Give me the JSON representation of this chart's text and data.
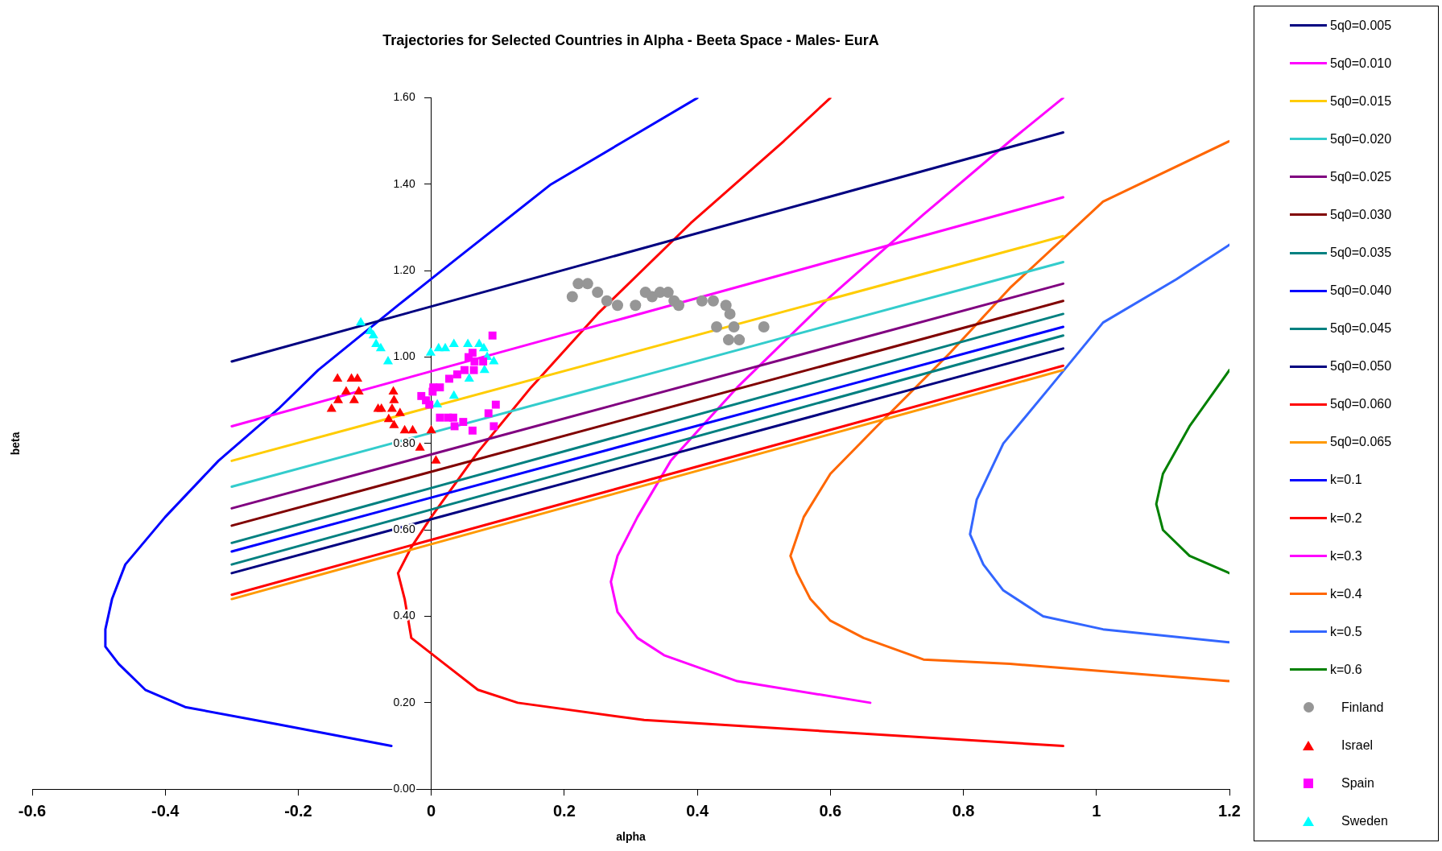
{
  "chart_data": {
    "type": "line",
    "title": "Trajectories for Selected Countries in Alpha - Beeta Space - Males- EurA",
    "xlabel": "alpha",
    "ylabel": "beta",
    "xlim": [
      -0.6,
      1.2
    ],
    "ylim": [
      0,
      1.6
    ],
    "xticks": [
      -0.6,
      -0.4,
      -0.2,
      0,
      0.2,
      0.4,
      0.6,
      0.8,
      1,
      1.2
    ],
    "yticks": [
      {
        "value": 0,
        "label": "0.00"
      },
      {
        "value": 0.2,
        "label": "0.20"
      },
      {
        "value": 0.4,
        "label": "0.40"
      },
      {
        "value": 0.6,
        "label": "0.60"
      },
      {
        "value": 0.8,
        "label": "0.80"
      },
      {
        "value": 1,
        "label": "1.00"
      },
      {
        "value": 1.2,
        "label": "1.20"
      },
      {
        "value": 1.4,
        "label": "1.40"
      },
      {
        "value": 1.6,
        "label": "1.60"
      }
    ],
    "grid": false,
    "legend": "right",
    "marker": "none",
    "line_style": "solid",
    "series": [
      {
        "name": "5q0=0.005",
        "type": "line",
        "color": "#000080",
        "x": [
          -0.3,
          0.95
        ],
        "values": [
          0.99,
          1.52
        ]
      },
      {
        "name": "5q0=0.010",
        "type": "line",
        "color": "#ff00ff",
        "x": [
          -0.3,
          0.95
        ],
        "values": [
          0.84,
          1.37
        ]
      },
      {
        "name": "5q0=0.015",
        "type": "line",
        "color": "#ffcc00",
        "x": [
          -0.3,
          0.95
        ],
        "values": [
          0.76,
          1.28
        ]
      },
      {
        "name": "5q0=0.020",
        "type": "line",
        "color": "#33cccc",
        "x": [
          -0.3,
          0.95
        ],
        "values": [
          0.7,
          1.22
        ]
      },
      {
        "name": "5q0=0.025",
        "type": "line",
        "color": "#800080",
        "x": [
          -0.3,
          0.95
        ],
        "values": [
          0.65,
          1.17
        ]
      },
      {
        "name": "5q0=0.030",
        "type": "line",
        "color": "#800000",
        "x": [
          -0.3,
          0.95
        ],
        "values": [
          0.61,
          1.13
        ]
      },
      {
        "name": "5q0=0.035",
        "type": "line",
        "color": "#008080",
        "x": [
          -0.3,
          0.95
        ],
        "values": [
          0.57,
          1.1
        ]
      },
      {
        "name": "5q0=0.040",
        "type": "line",
        "color": "#0000ff",
        "x": [
          -0.3,
          0.95
        ],
        "values": [
          0.55,
          1.07
        ]
      },
      {
        "name": "5q0=0.045",
        "type": "line",
        "color": "#008080",
        "x": [
          -0.3,
          0.95
        ],
        "values": [
          0.52,
          1.05
        ]
      },
      {
        "name": "5q0=0.050",
        "type": "line",
        "color": "#000080",
        "x": [
          -0.3,
          0.95
        ],
        "values": [
          0.5,
          1.02
        ]
      },
      {
        "name": "5q0=0.060",
        "type": "line",
        "color": "#ff0000",
        "x": [
          -0.3,
          0.95
        ],
        "values": [
          0.45,
          0.98
        ]
      },
      {
        "name": "5q0=0.065",
        "type": "line",
        "color": "#ff9900",
        "x": [
          -0.3,
          0.95
        ],
        "values": [
          0.44,
          0.97
        ]
      },
      {
        "name": "k=0.1",
        "type": "line",
        "color": "#0000ff",
        "x": [
          -0.06,
          -0.23,
          -0.37,
          -0.43,
          -0.47,
          -0.49,
          -0.49,
          -0.48,
          -0.46,
          -0.4,
          -0.32,
          -0.23,
          -0.17,
          -0.05,
          0.04,
          0.18,
          0.29,
          0.4
        ],
        "values": [
          0.1,
          0.15,
          0.19,
          0.23,
          0.29,
          0.33,
          0.37,
          0.44,
          0.52,
          0.63,
          0.76,
          0.88,
          0.97,
          1.12,
          1.23,
          1.4,
          1.5,
          1.6
        ]
      },
      {
        "name": "k=0.2",
        "type": "line",
        "color": "#ff0000",
        "x": [
          0.95,
          0.32,
          0.13,
          0.07,
          0.02,
          -0.03,
          -0.04,
          -0.05,
          -0.03,
          0,
          0.07,
          0.15,
          0.25,
          0.39,
          0.53,
          0.6
        ],
        "values": [
          0.1,
          0.16,
          0.2,
          0.23,
          0.29,
          0.35,
          0.44,
          0.5,
          0.56,
          0.63,
          0.78,
          0.93,
          1.1,
          1.31,
          1.5,
          1.6
        ]
      },
      {
        "name": "k=0.3",
        "type": "line",
        "color": "#ff00ff",
        "x": [
          0.66,
          0.46,
          0.35,
          0.31,
          0.28,
          0.27,
          0.28,
          0.31,
          0.36,
          0.46,
          0.6,
          0.74,
          0.87,
          0.95
        ],
        "values": [
          0.2,
          0.25,
          0.31,
          0.35,
          0.41,
          0.48,
          0.54,
          0.63,
          0.76,
          0.93,
          1.14,
          1.33,
          1.5,
          1.6
        ]
      },
      {
        "name": "k=0.4",
        "type": "line",
        "color": "#ff6600",
        "x": [
          1.2,
          0.87,
          0.74,
          0.65,
          0.6,
          0.57,
          0.55,
          0.54,
          0.56,
          0.6,
          0.67,
          0.78,
          0.87,
          1.01,
          1.2
        ],
        "values": [
          0.25,
          0.29,
          0.3,
          0.35,
          0.39,
          0.44,
          0.5,
          0.54,
          0.63,
          0.73,
          0.84,
          1.01,
          1.16,
          1.36,
          1.5
        ]
      },
      {
        "name": "k=0.5",
        "type": "line",
        "color": "#3366ff",
        "x": [
          1.2,
          1.01,
          0.92,
          0.86,
          0.83,
          0.81,
          0.82,
          0.86,
          0.93,
          1.01,
          1.12,
          1.2
        ],
        "values": [
          0.34,
          0.37,
          0.4,
          0.46,
          0.52,
          0.59,
          0.67,
          0.8,
          0.93,
          1.08,
          1.18,
          1.26
        ]
      },
      {
        "name": "k=0.6",
        "type": "line",
        "color": "#008000",
        "x": [
          1.2,
          1.14,
          1.1,
          1.09,
          1.1,
          1.14,
          1.2
        ],
        "values": [
          0.5,
          0.54,
          0.6,
          0.66,
          0.73,
          0.84,
          0.97
        ]
      },
      {
        "name": "Finland",
        "type": "scatter",
        "marker": "circle",
        "color": "#969696",
        "x": [
          0.212,
          0.221,
          0.235,
          0.25,
          0.264,
          0.28,
          0.307,
          0.322,
          0.332,
          0.344,
          0.356,
          0.365,
          0.372,
          0.407,
          0.424,
          0.443,
          0.449,
          0.429,
          0.455,
          0.447,
          0.463,
          0.5
        ],
        "values": [
          1.14,
          1.17,
          1.17,
          1.15,
          1.13,
          1.12,
          1.12,
          1.15,
          1.14,
          1.15,
          1.15,
          1.13,
          1.12,
          1.13,
          1.13,
          1.12,
          1.1,
          1.07,
          1.07,
          1.04,
          1.04,
          1.07
        ]
      },
      {
        "name": "Israel",
        "type": "scatter",
        "marker": "triangle",
        "color": "#ff0000",
        "x": [
          -0.141,
          -0.12,
          -0.111,
          -0.128,
          -0.109,
          -0.14,
          -0.116,
          -0.15,
          -0.057,
          -0.056,
          -0.08,
          -0.075,
          -0.059,
          -0.047,
          -0.064,
          -0.056,
          -0.04,
          -0.028,
          0,
          -0.017,
          0.007
        ],
        "values": [
          0.95,
          0.95,
          0.95,
          0.92,
          0.92,
          0.9,
          0.9,
          0.88,
          0.92,
          0.9,
          0.88,
          0.88,
          0.88,
          0.87,
          0.856,
          0.842,
          0.83,
          0.83,
          0.83,
          0.79,
          0.76
        ]
      },
      {
        "name": "Spain",
        "type": "scatter",
        "marker": "square",
        "color": "#ff00ff",
        "x": [
          0.092,
          0.062,
          0.056,
          0.065,
          0.078,
          0.064,
          0.05,
          0.039,
          0.027,
          0.013,
          0.003,
          0.002,
          -0.015,
          -0.008,
          -0.003,
          0.013,
          0.025,
          0.033,
          0.035,
          0.048,
          0.062,
          0.086,
          0.097,
          0.094
        ],
        "values": [
          1.05,
          1.01,
          1,
          0.99,
          0.99,
          0.97,
          0.97,
          0.96,
          0.95,
          0.93,
          0.93,
          0.92,
          0.91,
          0.9,
          0.89,
          0.86,
          0.86,
          0.86,
          0.84,
          0.85,
          0.83,
          0.87,
          0.89,
          0.84
        ]
      },
      {
        "name": "Sweden",
        "type": "scatter",
        "marker": "triangle",
        "color": "#00ffff",
        "x": [
          -0.106,
          -0.092,
          -0.087,
          -0.083,
          -0.076,
          -0.065,
          -0.001,
          0.011,
          0.021,
          0.034,
          0.055,
          0.072,
          0.079,
          0.084,
          0.094,
          0.08,
          0.057,
          0.034,
          0.009
        ],
        "values": [
          1.08,
          1.06,
          1.05,
          1.03,
          1.02,
          0.99,
          1.01,
          1.02,
          1.02,
          1.03,
          1.03,
          1.03,
          1.02,
          1,
          0.99,
          0.97,
          0.95,
          0.91,
          0.89
        ]
      }
    ]
  }
}
